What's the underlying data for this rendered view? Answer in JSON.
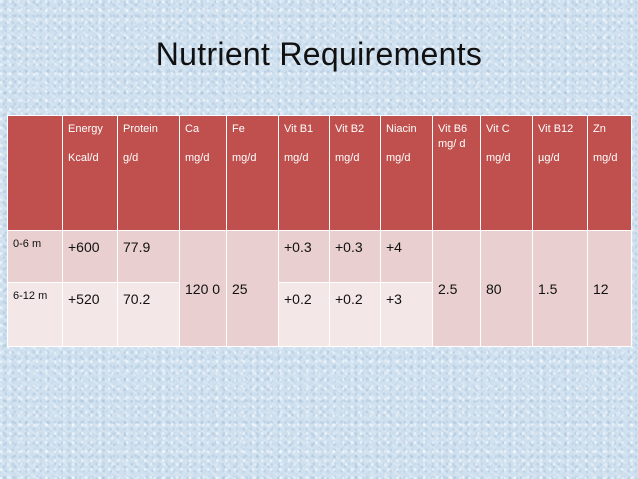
{
  "title": "Nutrient Requirements",
  "table": {
    "headers": [
      {
        "name": "",
        "unit": ""
      },
      {
        "name": "Energy",
        "unit": "Kcal/d"
      },
      {
        "name": "Protein",
        "unit": "g/d"
      },
      {
        "name": "Ca",
        "unit": "mg/d"
      },
      {
        "name": "Fe",
        "unit": "mg/d"
      },
      {
        "name": "Vit B1",
        "unit": "mg/d"
      },
      {
        "name": "Vit B2",
        "unit": "mg/d"
      },
      {
        "name": "Niacin",
        "unit": "mg/d"
      },
      {
        "name": "Vit B6",
        "unit": "mg/ d"
      },
      {
        "name": "Vit C",
        "unit": "mg/d"
      },
      {
        "name": "Vit B12",
        "unit": "µg/d"
      },
      {
        "name": "Zn",
        "unit": "mg/d"
      }
    ],
    "rows": [
      {
        "age": "0-6 m",
        "energy": "+600",
        "protein": "77.9",
        "vit_b1": "+0.3",
        "vit_b2": "+0.3",
        "niacin": "+4"
      },
      {
        "age": "6-12 m",
        "energy": "+520",
        "protein": "70.2",
        "vit_b1": "+0.2",
        "vit_b2": "+0.2",
        "niacin": "+3"
      }
    ],
    "shared": {
      "ca": "120 0",
      "fe": "25",
      "vit_b6": "2.5",
      "vit_c": "80",
      "vit_b12": "1.5",
      "zn": "12"
    }
  },
  "colors": {
    "header_bg": "#c0504d",
    "row_dark": "#e9cfcf",
    "row_light": "#f4e7e7",
    "slide_bg": "#cfe0ef"
  }
}
